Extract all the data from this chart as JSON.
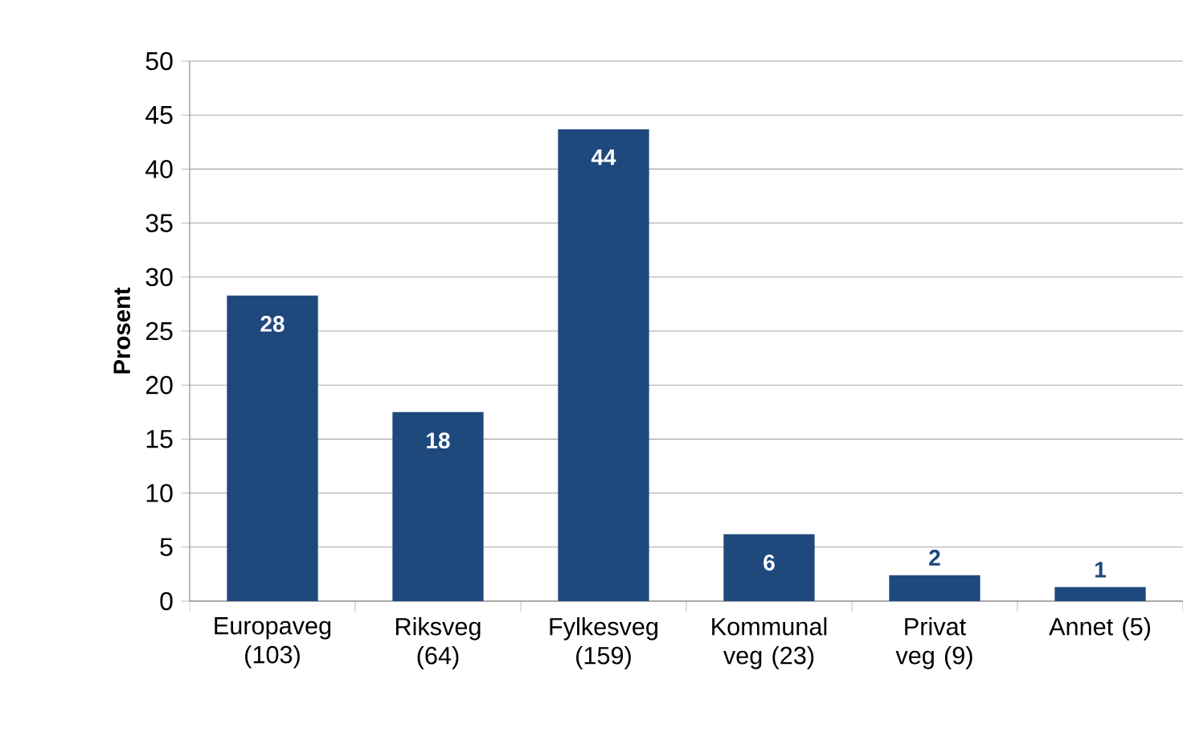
{
  "chart_data": {
    "type": "bar",
    "ylabel": "Prosent",
    "categories": [
      "Europaveg (103)",
      "Riksveg (64)",
      "Fylkesveg (159)",
      "Kommunal veg (23)",
      "Privat veg (9)",
      "Annet (5)"
    ],
    "values": [
      28.3,
      17.5,
      43.7,
      6.2,
      2.4,
      1.3
    ],
    "value_labels": [
      "28",
      "18",
      "44",
      "6",
      "2",
      "1"
    ],
    "color": "#1f497d",
    "ylim": [
      0,
      50
    ],
    "yticks": [
      0,
      5,
      10,
      15,
      20,
      25,
      30,
      35,
      40,
      45,
      50
    ],
    "grid": "y",
    "legend": false
  }
}
